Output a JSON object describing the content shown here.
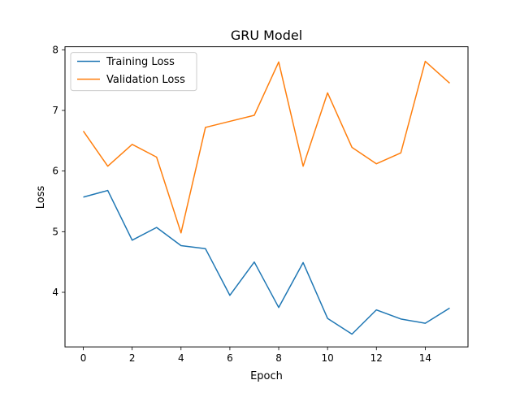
{
  "chart_data": {
    "type": "line",
    "title": "GRU Model",
    "xlabel": "Epoch",
    "ylabel": "Loss",
    "x": [
      0,
      1,
      2,
      3,
      4,
      5,
      6,
      7,
      8,
      9,
      10,
      11,
      12,
      13,
      14,
      15
    ],
    "xlim": [
      -0.75,
      15.75
    ],
    "ylim": [
      3.1,
      8.05
    ],
    "xticks": [
      0,
      2,
      4,
      6,
      8,
      10,
      12,
      14
    ],
    "yticks": [
      4,
      5,
      6,
      7,
      8
    ],
    "grid": false,
    "legend_position": "upper-left",
    "series": [
      {
        "name": "Training Loss",
        "color": "#1f77b4",
        "values": [
          5.57,
          5.68,
          4.86,
          5.07,
          4.77,
          4.72,
          3.95,
          4.5,
          3.75,
          4.49,
          3.57,
          3.31,
          3.71,
          3.56,
          3.49,
          3.74
        ]
      },
      {
        "name": "Validation Loss",
        "color": "#ff7f0e",
        "values": [
          6.66,
          6.08,
          6.44,
          6.23,
          4.98,
          6.72,
          6.82,
          6.92,
          7.8,
          6.08,
          7.29,
          6.39,
          6.12,
          6.3,
          7.81,
          7.45
        ]
      }
    ]
  }
}
